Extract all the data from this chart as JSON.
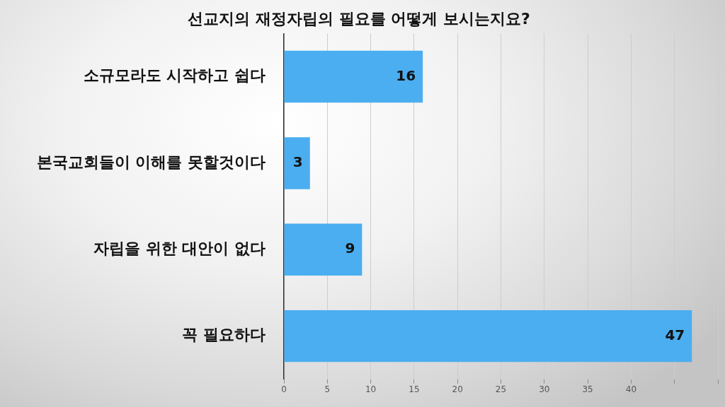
{
  "chart_data": {
    "type": "bar",
    "title": "선교지의 재정자립의 필요를 어떻게 보시는지요?",
    "orientation": "horizontal",
    "categories": [
      "소규모라도 시작하고 쉽다",
      "본국교회들이 이해를 못할것이다",
      "자립을 위한 대안이 없다",
      "꼭 필요하다"
    ],
    "values": [
      16,
      3,
      9,
      47
    ],
    "color": "#4baef0",
    "xlim": [
      0,
      50
    ],
    "xticks": [
      0,
      5,
      10,
      15,
      20,
      25,
      30,
      35,
      40,
      {
        "value": 45,
        "label": null
      },
      {
        "value": 50,
        "label": null
      }
    ],
    "grid": "x",
    "data_labels": true
  }
}
